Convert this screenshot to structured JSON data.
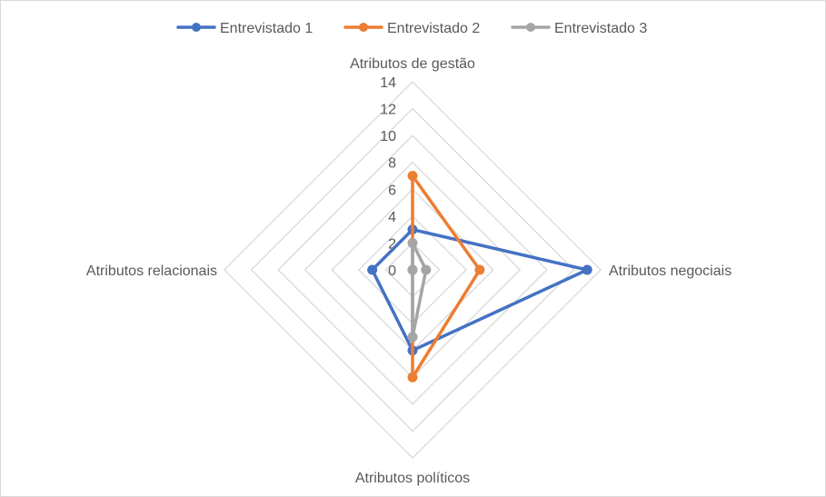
{
  "chart_data": {
    "type": "radar",
    "title": "",
    "categories": [
      "Atributos de gestão",
      "Atributos negociais",
      "Atributos políticos",
      "Atributos relacionais"
    ],
    "rlim": [
      0,
      14
    ],
    "ticks": [
      "0",
      "2",
      "4",
      "6",
      "8",
      "10",
      "12",
      "14"
    ],
    "tick_values": [
      0,
      2,
      4,
      6,
      8,
      10,
      12,
      14
    ],
    "grid": true,
    "legend_position": "top",
    "series": [
      {
        "name": "Entrevistado 1",
        "color": "#4472C4",
        "values": [
          3,
          13,
          6,
          3
        ]
      },
      {
        "name": "Entrevistado 2",
        "color": "#ED7D31",
        "values": [
          7,
          5,
          8,
          0
        ]
      },
      {
        "name": "Entrevistado 3",
        "color": "#A5A5A5",
        "values": [
          2,
          1,
          5,
          0
        ]
      }
    ]
  }
}
